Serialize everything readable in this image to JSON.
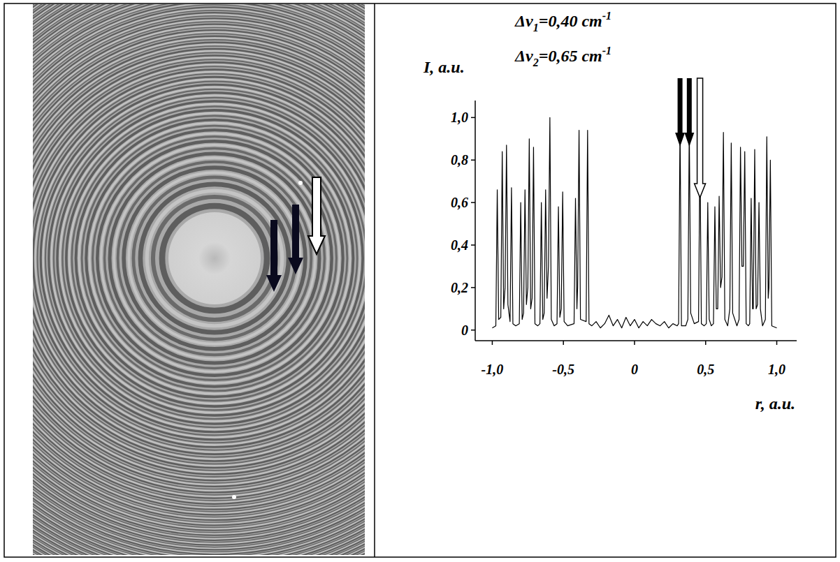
{
  "chart_data": {
    "type": "line",
    "annotations": [
      {
        "symbol": "Δν",
        "sub": "1",
        "text": "=0,40 cm",
        "sup": "-1"
      },
      {
        "symbol": "Δν",
        "sub": "2",
        "text": "=0,65 cm",
        "sup": "-1"
      }
    ],
    "y_label": "I, a.u.",
    "x_label": "r, a.u.",
    "xlim": [
      -1.12,
      1.14
    ],
    "ylim": [
      -0.05,
      1.08
    ],
    "xticks": [
      {
        "value": -1.0,
        "label": "-1,0"
      },
      {
        "value": -0.5,
        "label": "-0,5"
      },
      0,
      {
        "value": 0.5,
        "label": "0,5"
      },
      {
        "value": 1.0,
        "label": "1,0"
      }
    ],
    "yticks": [
      0,
      {
        "value": 0.2,
        "label": "0,2"
      },
      {
        "value": 0.4,
        "label": "0,4"
      },
      {
        "value": 0.6,
        "label": "0,6"
      },
      {
        "value": 0.8,
        "label": "0,8"
      },
      {
        "value": 1.0,
        "label": "1,0"
      }
    ],
    "grid": false,
    "color": "#000000",
    "x": [
      -1.0,
      -0.975,
      -0.965,
      -0.955,
      -0.94,
      -0.93,
      -0.92,
      -0.91,
      -0.9,
      -0.89,
      -0.875,
      -0.865,
      -0.855,
      -0.835,
      -0.81,
      -0.8,
      -0.79,
      -0.78,
      -0.77,
      -0.76,
      -0.75,
      -0.74,
      -0.73,
      -0.72,
      -0.71,
      -0.7,
      -0.68,
      -0.665,
      -0.655,
      -0.645,
      -0.635,
      -0.625,
      -0.615,
      -0.605,
      -0.595,
      -0.585,
      -0.565,
      -0.545,
      -0.535,
      -0.525,
      -0.515,
      -0.505,
      -0.495,
      -0.47,
      -0.425,
      -0.415,
      -0.405,
      -0.4,
      -0.39,
      -0.38,
      -0.34,
      -0.33,
      -0.32,
      -0.3,
      -0.27,
      -0.24,
      -0.21,
      -0.18,
      -0.15,
      -0.12,
      -0.09,
      -0.06,
      -0.03,
      0,
      0.03,
      0.06,
      0.09,
      0.12,
      0.15,
      0.18,
      0.21,
      0.24,
      0.27,
      0.3,
      0.31,
      0.32,
      0.33,
      0.36,
      0.375,
      0.385,
      0.395,
      0.42,
      0.45,
      0.46,
      0.47,
      0.49,
      0.505,
      0.515,
      0.525,
      0.54,
      0.555,
      0.565,
      0.575,
      0.585,
      0.595,
      0.605,
      0.615,
      0.625,
      0.635,
      0.655,
      0.67,
      0.68,
      0.69,
      0.72,
      0.735,
      0.745,
      0.755,
      0.765,
      0.775,
      0.785,
      0.8,
      0.81,
      0.82,
      0.83,
      0.835,
      0.845,
      0.855,
      0.865,
      0.875,
      0.885,
      0.9,
      0.92,
      0.93,
      0.94,
      0.945,
      0.955,
      0.965,
      1.0
    ],
    "values": [
      0.01,
      0.02,
      0.66,
      0.05,
      0.06,
      0.84,
      0.1,
      0.2,
      0.87,
      0.12,
      0.04,
      0.67,
      0.03,
      0.02,
      0.03,
      0.6,
      0.05,
      0.08,
      0.66,
      0.12,
      0.2,
      0.9,
      0.1,
      0.15,
      0.86,
      0.03,
      0.02,
      0.03,
      0.6,
      0.05,
      0.08,
      0.66,
      0.15,
      0.3,
      1.0,
      0.05,
      0.02,
      0.03,
      0.58,
      0.06,
      0.1,
      0.65,
      0.04,
      0.02,
      0.03,
      0.62,
      0.1,
      0.2,
      0.94,
      0.05,
      0.04,
      0.94,
      0.03,
      0.02,
      0.04,
      0.01,
      0.03,
      0.07,
      0.02,
      0.05,
      0.01,
      0.06,
      0.02,
      0.05,
      0.01,
      0.04,
      0.02,
      0.05,
      0.03,
      0.02,
      0.04,
      0.01,
      0.03,
      0.02,
      0.03,
      0.97,
      0.02,
      0.02,
      0.05,
      0.96,
      0.08,
      0.03,
      0.04,
      0.85,
      0.03,
      0.02,
      0.03,
      0.6,
      0.05,
      0.02,
      0.03,
      0.58,
      0.1,
      0.1,
      0.63,
      0.2,
      0.25,
      0.93,
      0.05,
      0.02,
      0.1,
      0.88,
      0.08,
      0.02,
      0.05,
      0.86,
      0.3,
      0.3,
      0.84,
      0.03,
      0.02,
      0.03,
      0.62,
      0.1,
      0.1,
      0.85,
      0.1,
      0.12,
      0.6,
      0.1,
      0.02,
      0.05,
      0.91,
      0.15,
      0.2,
      0.8,
      0.02,
      0.01
    ],
    "arrows": [
      {
        "x": 0.32,
        "color": "#000000"
      },
      {
        "x": 0.385,
        "color": "#000000"
      },
      {
        "x": 0.46,
        "color": "#ffffff"
      }
    ]
  }
}
